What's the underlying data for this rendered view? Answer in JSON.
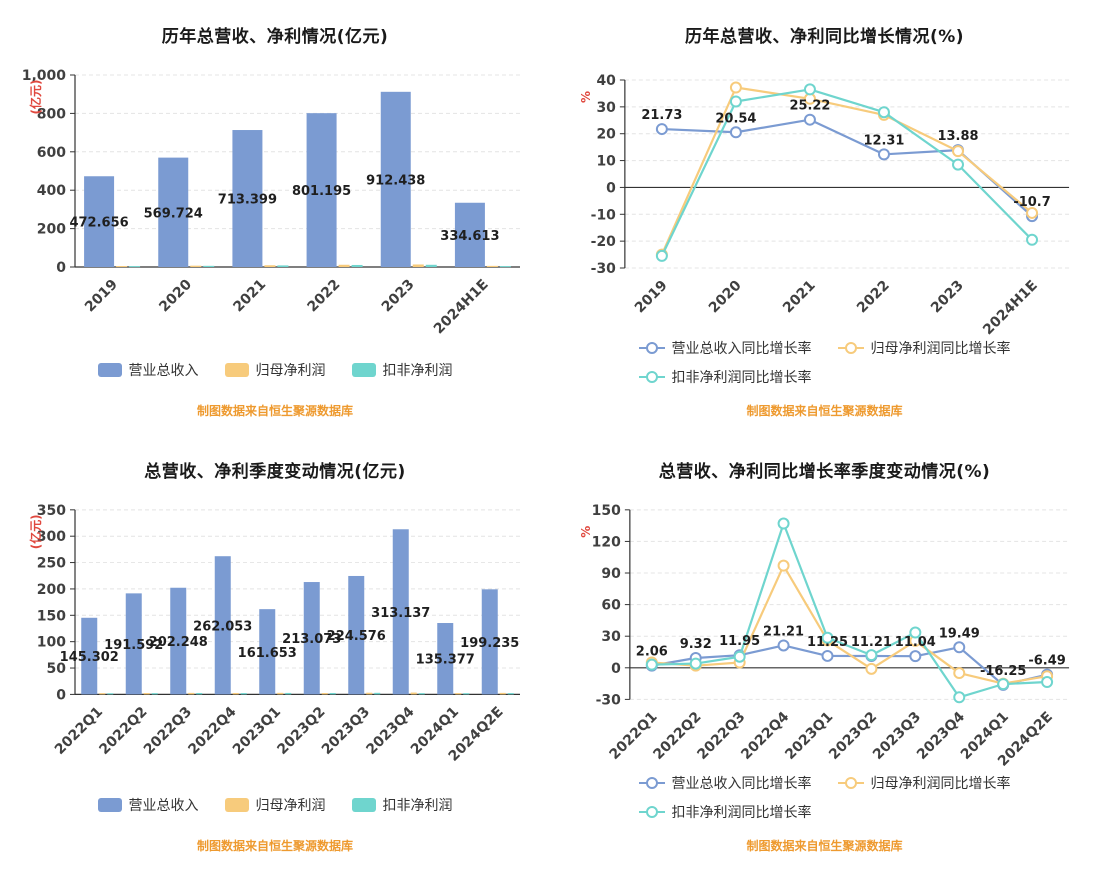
{
  "palette": {
    "blue": "#7B9BD2",
    "orange": "#F7CB7C",
    "teal": "#6FD5CE",
    "axis_name_red": "#E0483E",
    "note_orange": "#EE9A2F",
    "axis_dark": "#333333",
    "label_dark": "#1F1F1F",
    "background": "#FFFFFF"
  },
  "chart_data": [
    {
      "type": "bar",
      "title": "历年总营收、净利情况(亿元)",
      "ylabel": "(亿元)",
      "categories": [
        "2019",
        "2020",
        "2021",
        "2022",
        "2023",
        "2024H1E"
      ],
      "series": [
        {
          "name": "营业总收入",
          "color": "#7B9BD2",
          "values": [
            472.656,
            569.724,
            713.399,
            801.195,
            912.438,
            334.613
          ],
          "labels": true
        },
        {
          "name": "归母净利润",
          "color": "#F7CB7C",
          "values": [
            5.0,
            6.9,
            9.1,
            11.6,
            13.2,
            5.9
          ],
          "labels": false
        },
        {
          "name": "扣非净利润",
          "color": "#6FD5CE",
          "values": [
            4.6,
            6.1,
            8.3,
            10.6,
            11.5,
            4.6
          ],
          "labels": false
        }
      ],
      "ylim": [
        0,
        1000
      ],
      "ytick_step": 200,
      "grid": true,
      "legend_position": "bottom",
      "source_note": "制图数据来自恒生聚源数据库"
    },
    {
      "type": "line",
      "title": "历年总营收、净利同比增长情况(%)",
      "ylabel": "%",
      "categories": [
        "2019",
        "2020",
        "2021",
        "2022",
        "2023",
        "2024H1E"
      ],
      "series": [
        {
          "name": "营业总收入同比增长率",
          "color": "#7B9BD2",
          "values": [
            21.73,
            20.54,
            25.22,
            12.31,
            13.88,
            -10.7
          ],
          "labels": true
        },
        {
          "name": "归母净利润同比增长率",
          "color": "#F7CB7C",
          "values": [
            -25.0,
            37.2,
            33.0,
            27.0,
            13.5,
            -9.5
          ],
          "labels": false
        },
        {
          "name": "扣非净利润同比增长率",
          "color": "#6FD5CE",
          "values": [
            -25.5,
            32.0,
            36.5,
            28.0,
            8.5,
            -19.5
          ],
          "labels": false
        }
      ],
      "ylim": [
        -30,
        40
      ],
      "ytick_step": 10,
      "grid": true,
      "legend_position": "bottom",
      "legend_rows": [
        [
          "营业总收入同比增长率",
          "归母净利润同比增长率"
        ],
        [
          "扣非净利润同比增长率"
        ]
      ],
      "source_note": "制图数据来自恒生聚源数据库"
    },
    {
      "type": "bar",
      "title": "总营收、净利季度变动情况(亿元)",
      "ylabel": "(亿元)",
      "categories": [
        "2022Q1",
        "2022Q2",
        "2022Q3",
        "2022Q4",
        "2023Q1",
        "2023Q2",
        "2023Q3",
        "2023Q4",
        "2024Q1",
        "2024Q2E"
      ],
      "series": [
        {
          "name": "营业总收入",
          "color": "#7B9BD2",
          "values": [
            145.302,
            191.592,
            202.248,
            262.053,
            161.653,
            213.073,
            224.576,
            313.137,
            135.377,
            199.235
          ],
          "labels": true
        },
        {
          "name": "归母净利润",
          "color": "#F7CB7C",
          "values": [
            2.4,
            2.6,
            2.9,
            2.7,
            3.0,
            2.6,
            3.2,
            3.5,
            2.5,
            2.9
          ],
          "labels": false
        },
        {
          "name": "扣非净利润",
          "color": "#6FD5CE",
          "values": [
            2.2,
            2.4,
            2.7,
            2.5,
            2.8,
            2.7,
            3.0,
            2.4,
            2.3,
            2.5
          ],
          "labels": false
        }
      ],
      "ylim": [
        0,
        350
      ],
      "ytick_step": 50,
      "grid": true,
      "legend_position": "bottom",
      "source_note": "制图数据来自恒生聚源数据库"
    },
    {
      "type": "line",
      "title": "总营收、净利同比增长率季度变动情况(%)",
      "ylabel": "%",
      "categories": [
        "2022Q1",
        "2022Q2",
        "2022Q3",
        "2022Q4",
        "2023Q1",
        "2023Q2",
        "2023Q3",
        "2023Q4",
        "2024Q1",
        "2024Q2E"
      ],
      "series": [
        {
          "name": "营业总收入同比增长率",
          "color": "#7B9BD2",
          "values": [
            2.06,
            9.32,
            11.95,
            21.21,
            11.25,
            11.21,
            11.04,
            19.49,
            -16.25,
            -6.49
          ],
          "labels": true
        },
        {
          "name": "归母净利润同比增长率",
          "color": "#F7CB7C",
          "values": [
            5.0,
            2.0,
            5.0,
            97.0,
            26.0,
            -1.0,
            25.5,
            -5.0,
            -15.0,
            -8.0
          ],
          "labels": false
        },
        {
          "name": "扣非净利润同比增长率",
          "color": "#6FD5CE",
          "values": [
            3.0,
            4.0,
            10.5,
            137.0,
            28.5,
            12.0,
            33.5,
            -28.0,
            -15.5,
            -13.5
          ],
          "labels": false
        }
      ],
      "ylim": [
        -30,
        150
      ],
      "ytick_step": 30,
      "grid": true,
      "legend_position": "bottom",
      "legend_rows": [
        [
          "营业总收入同比增长率",
          "归母净利润同比增长率"
        ],
        [
          "扣非净利润同比增长率"
        ]
      ],
      "source_note": "制图数据来自恒生聚源数据库"
    }
  ]
}
